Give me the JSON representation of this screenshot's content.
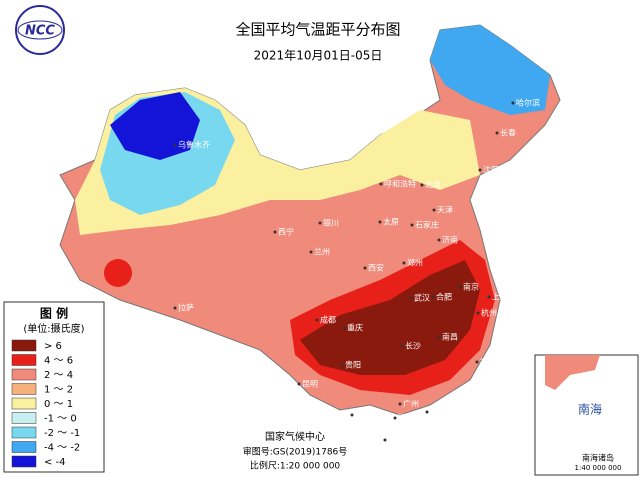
{
  "header": {
    "logo": "NCC",
    "title": "全国平均气温距平分布图",
    "subtitle": "2021年10月01日-05日"
  },
  "legend": {
    "title": "图 例",
    "unit": "(单位:摄氏度)",
    "items": [
      {
        "label": "> 6",
        "color": "#8b1a0e"
      },
      {
        "label": "4 ～ 6",
        "color": "#e8201a"
      },
      {
        "label": "2 ～ 4",
        "color": "#f08a7a"
      },
      {
        "label": "1 ～ 2",
        "color": "#f6b07a"
      },
      {
        "label": "0 ～ 1",
        "color": "#fbf0a0"
      },
      {
        "label": "-1 ～ 0",
        "color": "#c8f0f0"
      },
      {
        "label": "-2 ～ -1",
        "color": "#78d8f0"
      },
      {
        "label": "-4 ～ -2",
        "color": "#40a8f0"
      },
      {
        "label": "< -4",
        "color": "#1414d8"
      }
    ]
  },
  "footer": {
    "agency": "国家气候中心",
    "approval": "审图号:GS(2019)1786号",
    "scale": "比例尺:1:20 000 000"
  },
  "inset": {
    "label": "南海",
    "title": "南海诸岛",
    "scale": "1:40 000 000"
  },
  "cities": [
    "乌鲁木齐",
    "哈尔滨",
    "长春",
    "沈阳",
    "呼和浩特",
    "北京",
    "天津",
    "石家庄",
    "太原",
    "银川",
    "西宁",
    "兰州",
    "济南",
    "郑州",
    "西安",
    "拉萨",
    "成都",
    "重庆",
    "武汉",
    "合肥",
    "南京",
    "上海",
    "杭州",
    "长沙",
    "南昌",
    "贵阳",
    "福州",
    "昆明",
    "南宁",
    "广州",
    "香港",
    "澳门",
    "海口"
  ]
}
